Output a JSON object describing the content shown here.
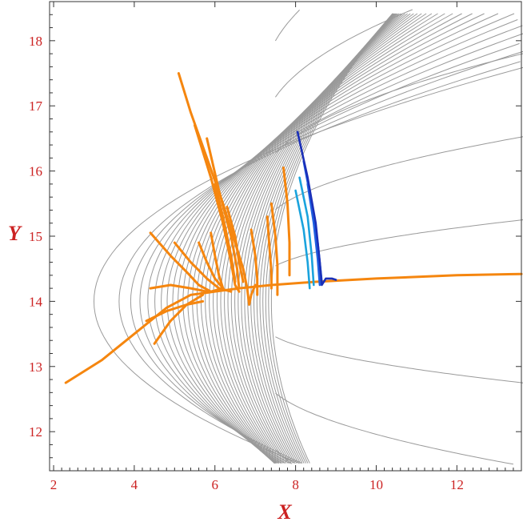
{
  "chart_data": {
    "type": "line",
    "title": "",
    "xlabel": "X",
    "ylabel": "Y",
    "xlim": [
      1.9,
      13.6
    ],
    "ylim": [
      11.4,
      18.6
    ],
    "xticks": [
      2,
      4,
      6,
      8,
      10,
      12
    ],
    "yticks": [
      12,
      13,
      14,
      15,
      16,
      17,
      18
    ],
    "grid": false,
    "legend": "none",
    "colors": {
      "axis_text": "#cc2222",
      "contour": "#9a9a9a",
      "orange": "#f5860f",
      "light_blue": "#1aa3dd",
      "mid_blue": "#1f5fe0",
      "dark_blue": "#1a2fb8"
    },
    "contour_field": {
      "description": "potential energy contour lines",
      "center": [
        7.2,
        14.0
      ],
      "levels": 36
    },
    "series": [
      {
        "color": "orange",
        "points": [
          [
            2.3,
            12.75
          ],
          [
            3.2,
            13.1
          ],
          [
            4.0,
            13.5
          ],
          [
            4.8,
            13.9
          ],
          [
            5.4,
            14.1
          ],
          [
            6.0,
            14.15
          ],
          [
            6.6,
            14.2
          ],
          [
            7.4,
            14.25
          ],
          [
            8.5,
            14.3
          ],
          [
            10.0,
            14.35
          ],
          [
            12.0,
            14.4
          ],
          [
            13.6,
            14.42
          ]
        ]
      },
      {
        "color": "orange",
        "points": [
          [
            5.1,
            17.5
          ],
          [
            5.4,
            16.9
          ],
          [
            5.8,
            16.2
          ],
          [
            6.2,
            15.5
          ],
          [
            6.5,
            14.9
          ],
          [
            6.7,
            14.5
          ],
          [
            6.8,
            14.2
          ],
          [
            6.85,
            13.95
          ],
          [
            6.9,
            14.1
          ],
          [
            7.0,
            14.25
          ]
        ]
      },
      {
        "color": "orange",
        "points": [
          [
            5.5,
            16.7
          ],
          [
            5.9,
            15.9
          ],
          [
            6.2,
            15.2
          ],
          [
            6.4,
            14.6
          ],
          [
            6.5,
            14.25
          ],
          [
            6.6,
            14.15
          ]
        ]
      },
      {
        "color": "orange",
        "points": [
          [
            5.8,
            16.5
          ],
          [
            6.1,
            15.7
          ],
          [
            6.4,
            15.0
          ],
          [
            6.55,
            14.5
          ],
          [
            6.6,
            14.2
          ]
        ]
      },
      {
        "color": "orange",
        "points": [
          [
            6.0,
            15.8
          ],
          [
            6.2,
            15.3
          ],
          [
            6.4,
            14.7
          ],
          [
            6.5,
            14.3
          ]
        ]
      },
      {
        "color": "orange",
        "points": [
          [
            4.4,
            15.05
          ],
          [
            4.9,
            14.7
          ],
          [
            5.3,
            14.45
          ],
          [
            5.6,
            14.25
          ],
          [
            5.9,
            14.15
          ],
          [
            6.2,
            14.2
          ]
        ]
      },
      {
        "color": "orange",
        "points": [
          [
            5.0,
            14.9
          ],
          [
            5.4,
            14.6
          ],
          [
            5.8,
            14.35
          ],
          [
            6.1,
            14.2
          ],
          [
            6.4,
            14.15
          ]
        ]
      },
      {
        "color": "orange",
        "points": [
          [
            5.6,
            14.9
          ],
          [
            5.8,
            14.6
          ],
          [
            6.0,
            14.35
          ],
          [
            6.2,
            14.2
          ]
        ]
      },
      {
        "color": "orange",
        "points": [
          [
            5.9,
            15.05
          ],
          [
            6.0,
            14.7
          ],
          [
            6.1,
            14.4
          ],
          [
            6.2,
            14.2
          ]
        ]
      },
      {
        "color": "orange",
        "points": [
          [
            6.3,
            15.45
          ],
          [
            6.5,
            15.0
          ],
          [
            6.6,
            14.6
          ],
          [
            6.7,
            14.3
          ]
        ]
      },
      {
        "color": "orange",
        "points": [
          [
            4.3,
            13.7
          ],
          [
            4.8,
            13.85
          ],
          [
            5.3,
            13.95
          ],
          [
            5.7,
            14.0
          ]
        ]
      },
      {
        "color": "orange",
        "points": [
          [
            4.5,
            13.35
          ],
          [
            4.9,
            13.7
          ],
          [
            5.3,
            13.95
          ],
          [
            5.7,
            14.1
          ]
        ]
      },
      {
        "color": "orange",
        "points": [
          [
            4.4,
            14.2
          ],
          [
            4.9,
            14.25
          ],
          [
            5.4,
            14.2
          ],
          [
            5.8,
            14.15
          ]
        ]
      },
      {
        "color": "orange",
        "points": [
          [
            6.9,
            15.1
          ],
          [
            7.0,
            14.7
          ],
          [
            7.05,
            14.35
          ],
          [
            7.05,
            14.1
          ]
        ]
      },
      {
        "color": "orange",
        "points": [
          [
            7.3,
            15.3
          ],
          [
            7.35,
            14.85
          ],
          [
            7.4,
            14.45
          ],
          [
            7.4,
            14.2
          ]
        ]
      },
      {
        "color": "orange",
        "points": [
          [
            7.7,
            16.05
          ],
          [
            7.8,
            15.5
          ],
          [
            7.85,
            14.9
          ],
          [
            7.85,
            14.4
          ]
        ]
      },
      {
        "color": "orange",
        "points": [
          [
            7.4,
            15.5
          ],
          [
            7.5,
            15.0
          ],
          [
            7.55,
            14.55
          ],
          [
            7.55,
            14.1
          ]
        ]
      },
      {
        "color": "light_blue",
        "points": [
          [
            8.0,
            15.7
          ],
          [
            8.2,
            15.1
          ],
          [
            8.3,
            14.6
          ],
          [
            8.35,
            14.2
          ]
        ]
      },
      {
        "color": "light_blue",
        "points": [
          [
            8.1,
            15.9
          ],
          [
            8.3,
            15.3
          ],
          [
            8.4,
            14.7
          ],
          [
            8.45,
            14.25
          ]
        ]
      },
      {
        "color": "mid_blue",
        "points": [
          [
            8.3,
            15.8
          ],
          [
            8.45,
            15.2
          ],
          [
            8.55,
            14.65
          ],
          [
            8.6,
            14.25
          ]
        ]
      },
      {
        "color": "mid_blue",
        "points": [
          [
            8.2,
            16.15
          ],
          [
            8.4,
            15.5
          ],
          [
            8.55,
            14.9
          ],
          [
            8.65,
            14.3
          ]
        ]
      },
      {
        "color": "dark_blue",
        "points": [
          [
            8.05,
            16.6
          ],
          [
            8.3,
            15.9
          ],
          [
            8.5,
            15.2
          ],
          [
            8.6,
            14.6
          ],
          [
            8.65,
            14.25
          ],
          [
            8.75,
            14.35
          ],
          [
            8.9,
            14.35
          ],
          [
            9.0,
            14.33
          ]
        ]
      }
    ]
  }
}
